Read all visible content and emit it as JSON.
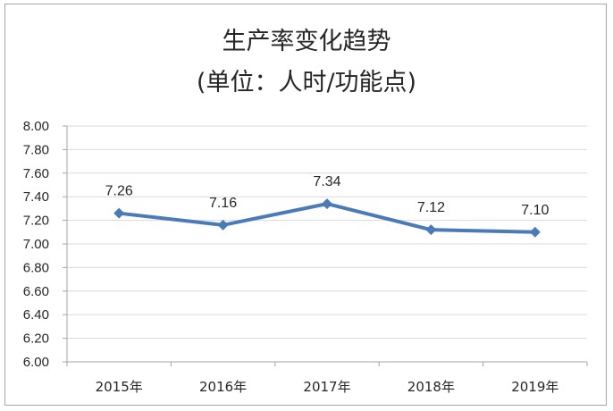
{
  "chart_data": {
    "type": "line",
    "title": "生产率变化趋势",
    "subtitle": "(单位：人时/功能点)",
    "xlabel": "",
    "ylabel": "",
    "categories": [
      "2015年",
      "2016年",
      "2017年",
      "2018年",
      "2019年"
    ],
    "series": [
      {
        "values": [
          7.26,
          7.16,
          7.34,
          7.12,
          7.1
        ],
        "labels": [
          "7.26",
          "7.16",
          "7.34",
          "7.12",
          "7.10"
        ]
      }
    ],
    "ylim": [
      6.0,
      8.0
    ],
    "yticks": [
      "6.00",
      "6.20",
      "6.40",
      "6.60",
      "6.80",
      "7.00",
      "7.20",
      "7.40",
      "7.60",
      "7.80",
      "8.00"
    ],
    "grid": true,
    "legend": "none",
    "line_color": "#4a7ab8",
    "grid_color": "#d9d9d9"
  }
}
